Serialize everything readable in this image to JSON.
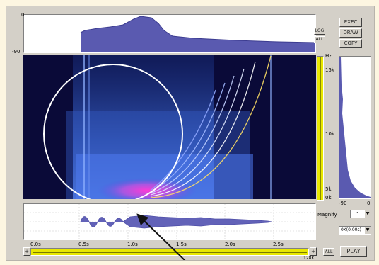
{
  "waveform_top": {
    "max_label": "0",
    "min_label": "-90"
  },
  "spectrogram": {
    "hz_label": "Hz",
    "freq_labels": [
      "15k",
      "10k",
      "5k",
      "0k"
    ]
  },
  "side_small_buttons": [
    "LOG",
    "ALL"
  ],
  "action_buttons": [
    "EXEC",
    "DRAW",
    "COPY"
  ],
  "side_spectrum": {
    "left_label": "-90",
    "right_label": "0"
  },
  "magnify": {
    "label": "Magnify",
    "value": "1"
  },
  "offset_select": {
    "value": "0K(0.00s)"
  },
  "time_axis": {
    "ticks": [
      "0.0s",
      "0.5s",
      "1.0s",
      "1.5s",
      "2.0s",
      "2.5s"
    ]
  },
  "scroll": {
    "end_label": "128K",
    "all_label": "ALL"
  },
  "play_button": {
    "label": "PLAY"
  }
}
